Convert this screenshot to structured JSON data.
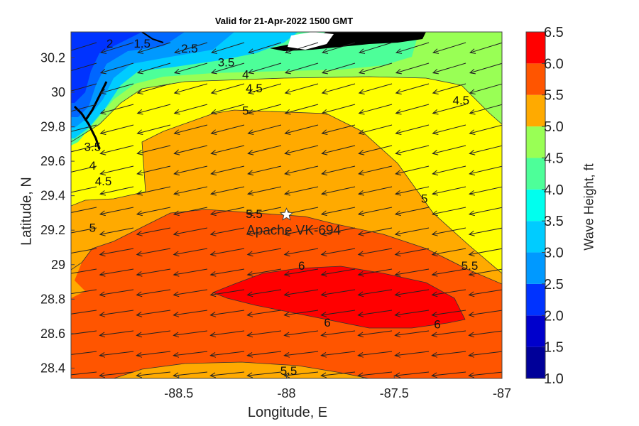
{
  "title": "Valid for 21-Apr-2022 1500 GMT",
  "x_axis": {
    "label": "Longitude, E",
    "range": [
      -89.0,
      -87.0
    ],
    "ticks": [
      -88.5,
      -88,
      -87.5,
      -87
    ],
    "tick_labels": [
      "-88.5",
      "-88",
      "-87.5",
      "-87"
    ]
  },
  "y_axis": {
    "label": "Latitude, N",
    "range": [
      28.34,
      30.35
    ],
    "ticks": [
      28.4,
      28.6,
      28.8,
      29.0,
      29.2,
      29.4,
      29.6,
      29.8,
      30.0,
      30.2
    ],
    "tick_labels": [
      "28.4",
      "28.6",
      "28.8",
      "29",
      "29.2",
      "29.4",
      "29.6",
      "29.8",
      "30",
      "30.2"
    ]
  },
  "colorbar": {
    "label": "Wave Height, ft",
    "range": [
      1.0,
      6.5
    ],
    "tick_labels": [
      "6.5",
      "6.0",
      "5.5",
      "5.0",
      "4.5",
      "4.0",
      "3.5",
      "3.0",
      "2.5",
      "2.0",
      "1.5",
      "1.0"
    ],
    "colors": [
      "#000099",
      "#0000cc",
      "#0033ff",
      "#0066ff",
      "#0099ff",
      "#00ccff",
      "#00ffee",
      "#4dff99",
      "#99ff55",
      "#ffff00",
      "#ffaa00",
      "#ff5500",
      "#ff0000"
    ]
  },
  "station": {
    "name": "Apache VK-694",
    "lon": -88.0,
    "lat": 29.29
  },
  "contour_labels": [
    {
      "text": "2",
      "lon": -88.82,
      "lat": 30.26
    },
    {
      "text": "1.5",
      "lon": -88.67,
      "lat": 30.26
    },
    {
      "text": "2.5",
      "lon": -88.45,
      "lat": 30.23
    },
    {
      "text": "3.5",
      "lon": -88.28,
      "lat": 30.15
    },
    {
      "text": "4",
      "lon": -88.19,
      "lat": 30.08
    },
    {
      "text": "4.5",
      "lon": -88.15,
      "lat": 30.0
    },
    {
      "text": "5",
      "lon": -88.19,
      "lat": 29.87
    },
    {
      "text": "4.5",
      "lon": -87.19,
      "lat": 29.93
    },
    {
      "text": "3.5",
      "lon": -88.9,
      "lat": 29.66
    },
    {
      "text": "4",
      "lon": -88.9,
      "lat": 29.55
    },
    {
      "text": "4.5",
      "lon": -88.85,
      "lat": 29.46
    },
    {
      "text": "5",
      "lon": -88.9,
      "lat": 29.19
    },
    {
      "text": "5",
      "lon": -87.36,
      "lat": 29.36
    },
    {
      "text": "5.5",
      "lon": -88.15,
      "lat": 29.27
    },
    {
      "text": "5.5",
      "lon": -87.15,
      "lat": 28.97
    },
    {
      "text": "6",
      "lon": -87.93,
      "lat": 28.97
    },
    {
      "text": "6",
      "lon": -87.81,
      "lat": 28.64
    },
    {
      "text": "6",
      "lon": -87.3,
      "lat": 28.63
    },
    {
      "text": "5.5",
      "lon": -87.99,
      "lat": 28.36
    }
  ]
}
